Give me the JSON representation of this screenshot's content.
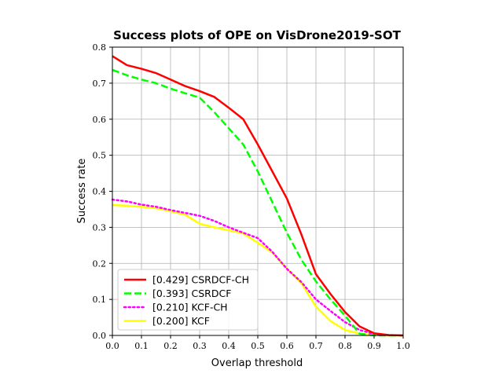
{
  "chart_data": {
    "type": "line",
    "title": "Success plots of OPE on VisDrone2019-SOT",
    "xlabel": "Overlap threshold",
    "ylabel": "Success rate",
    "xlim": [
      0.0,
      1.0
    ],
    "ylim": [
      0.0,
      0.8
    ],
    "xticks": [
      "0.0",
      "0.1",
      "0.2",
      "0.3",
      "0.4",
      "0.5",
      "0.6",
      "0.7",
      "0.8",
      "0.9",
      "1.0"
    ],
    "yticks": [
      "0.0",
      "0.1",
      "0.2",
      "0.3",
      "0.4",
      "0.5",
      "0.6",
      "0.7",
      "0.8"
    ],
    "grid": true,
    "legend_position": "lower-left",
    "x": [
      0.0,
      0.05,
      0.1,
      0.15,
      0.2,
      0.25,
      0.3,
      0.35,
      0.4,
      0.45,
      0.5,
      0.55,
      0.6,
      0.65,
      0.7,
      0.75,
      0.8,
      0.85,
      0.9,
      0.95,
      1.0
    ],
    "series": [
      {
        "name": "[0.429] CSRDCF-CH",
        "color": "#ff0000",
        "style": "solid",
        "values": [
          0.775,
          0.75,
          0.74,
          0.728,
          0.71,
          0.692,
          0.678,
          0.662,
          0.632,
          0.6,
          0.53,
          0.455,
          0.38,
          0.28,
          0.17,
          0.115,
          0.065,
          0.025,
          0.006,
          0.001,
          0.0
        ]
      },
      {
        "name": "[0.393] CSRDCF",
        "color": "#00ff00",
        "style": "dashed",
        "values": [
          0.737,
          0.722,
          0.71,
          0.7,
          0.685,
          0.672,
          0.66,
          0.62,
          0.575,
          0.53,
          0.455,
          0.37,
          0.285,
          0.21,
          0.15,
          0.1,
          0.055,
          0.005,
          0.0,
          0.0,
          0.0
        ]
      },
      {
        "name": "[0.210] KCF-CH",
        "color": "#ff00ff",
        "style": "dotted",
        "values": [
          0.377,
          0.372,
          0.363,
          0.357,
          0.348,
          0.34,
          0.332,
          0.318,
          0.3,
          0.285,
          0.27,
          0.232,
          0.185,
          0.148,
          0.1,
          0.068,
          0.037,
          0.015,
          0.004,
          0.001,
          0.0
        ]
      },
      {
        "name": "[0.200] KCF",
        "color": "#ffff00",
        "style": "solid",
        "values": [
          0.362,
          0.36,
          0.357,
          0.353,
          0.345,
          0.335,
          0.31,
          0.3,
          0.292,
          0.283,
          0.257,
          0.23,
          0.185,
          0.145,
          0.08,
          0.04,
          0.015,
          0.005,
          0.001,
          0.0,
          0.0
        ]
      }
    ]
  }
}
